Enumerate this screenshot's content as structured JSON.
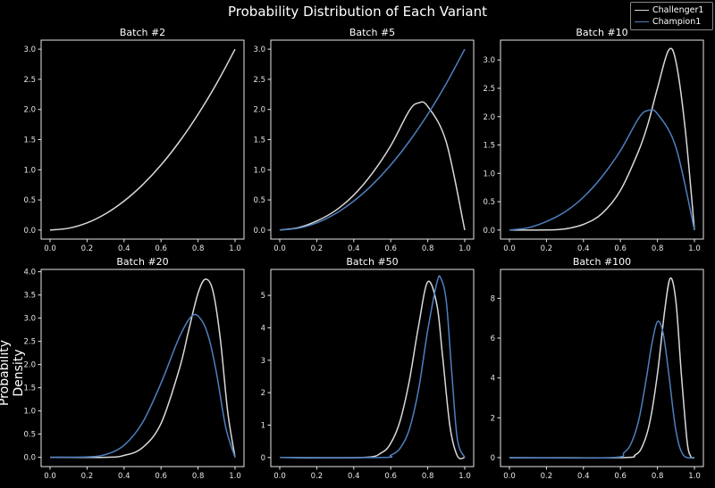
{
  "figure": {
    "title": "Probability Distribution of Each Variant",
    "ylabel": "Probability Density",
    "legend": {
      "placement": "top-right",
      "items": [
        {
          "label": "Challenger1",
          "color": "#d9d9d9"
        },
        {
          "label": "Champion1",
          "color": "#4f7fbf"
        }
      ]
    }
  },
  "chart_data": [
    {
      "type": "line",
      "title": "Batch #2",
      "xlim": [
        0,
        1
      ],
      "ylim": [
        -0.15,
        3.15
      ],
      "xticks": [
        "0.0",
        "0.2",
        "0.4",
        "0.6",
        "0.8",
        "1.0"
      ],
      "yticks": [
        "0.0",
        "0.5",
        "1.0",
        "1.5",
        "2.0",
        "2.5",
        "3.0"
      ],
      "series": [
        {
          "name": "Challenger1",
          "color": "#d9d9d9",
          "x": [
            0,
            0.1,
            0.2,
            0.3,
            0.4,
            0.5,
            0.6,
            0.7,
            0.8,
            0.9,
            1.0
          ],
          "y": [
            0,
            0.03,
            0.12,
            0.27,
            0.48,
            0.75,
            1.08,
            1.47,
            1.92,
            2.43,
            3.0
          ]
        }
      ]
    },
    {
      "type": "line",
      "title": "Batch #5",
      "xlim": [
        0,
        1
      ],
      "ylim": [
        -0.15,
        3.15
      ],
      "xticks": [
        "0.0",
        "0.2",
        "0.4",
        "0.6",
        "0.8",
        "1.0"
      ],
      "yticks": [
        "0.0",
        "0.5",
        "1.0",
        "1.5",
        "2.0",
        "2.5",
        "3.0"
      ],
      "series": [
        {
          "name": "Challenger1",
          "color": "#d9d9d9",
          "x": [
            0,
            0.1,
            0.2,
            0.3,
            0.4,
            0.5,
            0.6,
            0.7,
            0.75,
            0.8,
            0.9,
            1.0
          ],
          "y": [
            0,
            0.04,
            0.15,
            0.32,
            0.58,
            0.94,
            1.4,
            1.98,
            2.11,
            2.05,
            1.46,
            0
          ]
        },
        {
          "name": "Champion1",
          "color": "#4f7fbf",
          "x": [
            0,
            0.1,
            0.2,
            0.3,
            0.4,
            0.5,
            0.6,
            0.7,
            0.8,
            0.9,
            1.0
          ],
          "y": [
            0,
            0.03,
            0.12,
            0.27,
            0.48,
            0.75,
            1.08,
            1.47,
            1.92,
            2.43,
            3.0
          ]
        }
      ]
    },
    {
      "type": "line",
      "title": "Batch #10",
      "xlim": [
        0,
        1
      ],
      "ylim": [
        -0.16,
        3.35
      ],
      "xticks": [
        "0.0",
        "0.2",
        "0.4",
        "0.6",
        "0.8",
        "1.0"
      ],
      "yticks": [
        "0.0",
        "0.5",
        "1.0",
        "1.5",
        "2.0",
        "2.5",
        "3.0"
      ],
      "series": [
        {
          "name": "Challenger1",
          "color": "#d9d9d9",
          "x": [
            0,
            0.2,
            0.3,
            0.4,
            0.5,
            0.6,
            0.7,
            0.75,
            0.8,
            0.86,
            0.9,
            0.95,
            1.0
          ],
          "y": [
            0,
            0,
            0.02,
            0.1,
            0.29,
            0.7,
            1.41,
            1.89,
            2.5,
            3.17,
            2.97,
            1.79,
            0
          ]
        },
        {
          "name": "Champion1",
          "color": "#4f7fbf",
          "x": [
            0,
            0.1,
            0.2,
            0.3,
            0.4,
            0.5,
            0.6,
            0.7,
            0.75,
            0.8,
            0.9,
            1.0
          ],
          "y": [
            0,
            0.04,
            0.15,
            0.32,
            0.58,
            0.94,
            1.4,
            1.98,
            2.11,
            2.05,
            1.46,
            0
          ]
        }
      ]
    },
    {
      "type": "line",
      "title": "Batch #20",
      "xlim": [
        0,
        1
      ],
      "ylim": [
        -0.2,
        4.05
      ],
      "xticks": [
        "0.0",
        "0.2",
        "0.4",
        "0.6",
        "0.8",
        "1.0"
      ],
      "yticks": [
        "0.0",
        "0.5",
        "1.0",
        "1.5",
        "2.0",
        "2.5",
        "3.0",
        "3.5",
        "4.0"
      ],
      "series": [
        {
          "name": "Challenger1",
          "color": "#d9d9d9",
          "x": [
            0,
            0.3,
            0.4,
            0.5,
            0.6,
            0.7,
            0.75,
            0.8,
            0.84,
            0.88,
            0.92,
            0.96,
            1.0
          ],
          "y": [
            0,
            0,
            0.04,
            0.21,
            0.73,
            1.92,
            2.75,
            3.54,
            3.84,
            3.59,
            2.57,
            0.99,
            0
          ]
        },
        {
          "name": "Champion1",
          "color": "#4f7fbf",
          "x": [
            0,
            0.2,
            0.3,
            0.4,
            0.5,
            0.6,
            0.7,
            0.77,
            0.82,
            0.86,
            0.9,
            0.95,
            1.0
          ],
          "y": [
            0,
            0.01,
            0.06,
            0.26,
            0.75,
            1.6,
            2.6,
            3.06,
            2.95,
            2.55,
            1.81,
            0.64,
            0
          ]
        }
      ]
    },
    {
      "type": "line",
      "title": "Batch #50",
      "xlim": [
        0,
        1
      ],
      "ylim": [
        -0.28,
        5.8
      ],
      "xticks": [
        "0.0",
        "0.2",
        "0.4",
        "0.6",
        "0.8",
        "1.0"
      ],
      "yticks": [
        "0",
        "1",
        "2",
        "3",
        "4",
        "5"
      ],
      "series": [
        {
          "name": "Challenger1",
          "color": "#d9d9d9",
          "x": [
            0,
            0.45,
            0.55,
            0.6,
            0.65,
            0.7,
            0.75,
            0.8,
            0.85,
            0.88,
            0.92,
            0.96,
            1.0
          ],
          "y": [
            0,
            0,
            0.15,
            0.44,
            1.12,
            2.35,
            4.05,
            5.42,
            4.7,
            3.13,
            0.97,
            0.05,
            0
          ]
        },
        {
          "name": "Champion1",
          "color": "#4f7fbf",
          "x": [
            0,
            0.55,
            0.6,
            0.65,
            0.7,
            0.75,
            0.8,
            0.85,
            0.87,
            0.9,
            0.93,
            0.96,
            1.0
          ],
          "y": [
            0,
            0,
            0.07,
            0.28,
            0.86,
            2.09,
            3.93,
            5.4,
            5.53,
            4.83,
            2.61,
            0.57,
            0
          ]
        }
      ]
    },
    {
      "type": "line",
      "title": "Batch #100",
      "xlim": [
        0,
        1
      ],
      "ylim": [
        -0.45,
        9.45
      ],
      "xticks": [
        "0.0",
        "0.2",
        "0.4",
        "0.6",
        "0.8",
        "1.0"
      ],
      "yticks": [
        "0",
        "2",
        "4",
        "6",
        "8"
      ],
      "series": [
        {
          "name": "Challenger1",
          "color": "#d9d9d9",
          "x": [
            0,
            0.6,
            0.68,
            0.72,
            0.76,
            0.8,
            0.84,
            0.87,
            0.9,
            0.93,
            0.96,
            0.98,
            1.0
          ],
          "y": [
            0,
            0,
            0.14,
            0.6,
            1.83,
            4.2,
            7.45,
            9.01,
            7.83,
            4.1,
            0.85,
            0.06,
            0
          ]
        },
        {
          "name": "Champion1",
          "color": "#4f7fbf",
          "x": [
            0,
            0.55,
            0.62,
            0.66,
            0.7,
            0.74,
            0.77,
            0.8,
            0.83,
            0.86,
            0.9,
            0.94,
            1.0
          ],
          "y": [
            0,
            0,
            0.26,
            0.76,
            1.93,
            3.98,
            5.72,
            6.83,
            6.29,
            4.31,
            1.35,
            0.13,
            0
          ]
        }
      ]
    }
  ]
}
